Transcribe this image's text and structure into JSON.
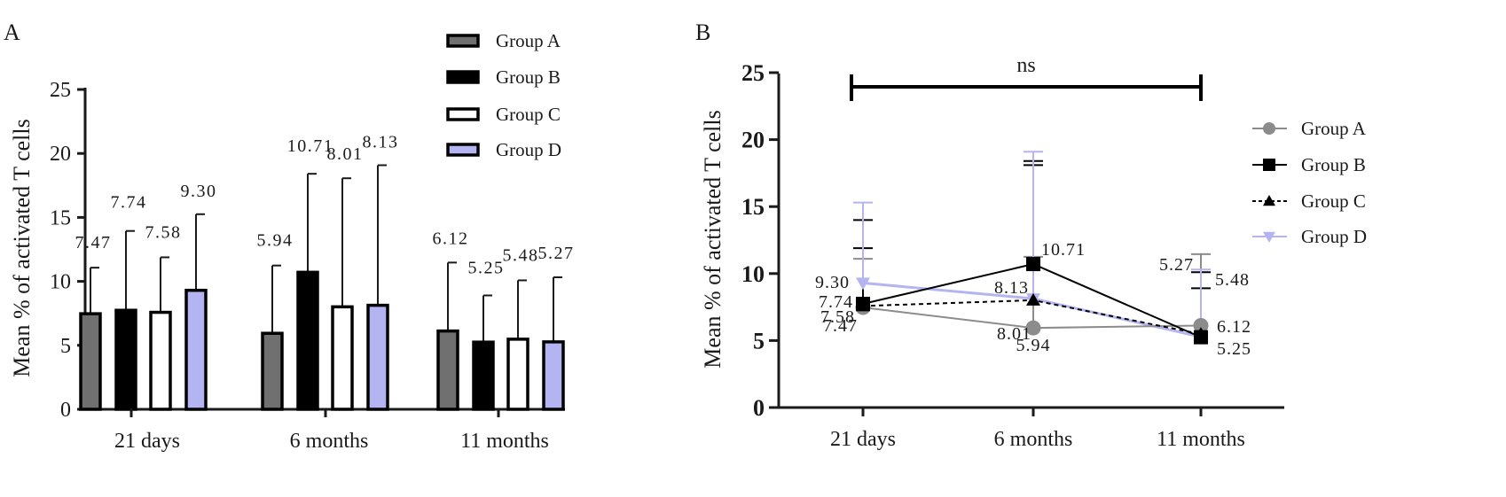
{
  "chart_data": [
    {
      "panel": "A",
      "type": "bar",
      "title": "",
      "xlabel": "",
      "ylabel": "Mean % of activated T cells",
      "ylim": [
        0,
        25
      ],
      "yticks": [
        "0",
        "5",
        "10",
        "15",
        "20",
        "25"
      ],
      "categories": [
        "21 days",
        "6 months",
        "11 months"
      ],
      "legend_position": "top-right",
      "series": [
        {
          "name": "Group A",
          "color": "#707070",
          "values": [
            7.47,
            5.94,
            6.12
          ],
          "errors": [
            3.6,
            5.3,
            5.35
          ],
          "labels": [
            "7.47",
            "5.94",
            "6.12"
          ]
        },
        {
          "name": "Group B",
          "color": "#000000",
          "values": [
            7.74,
            10.71,
            5.25
          ],
          "errors": [
            6.2,
            7.7,
            3.65
          ],
          "labels": [
            "7.74",
            "10.71",
            "5.25"
          ]
        },
        {
          "name": "Group C",
          "color": "#ffffff",
          "values": [
            7.58,
            8.01,
            5.48
          ],
          "errors": [
            4.3,
            10.05,
            4.6
          ],
          "labels": [
            "7.58",
            "8.01",
            "5.48"
          ]
        },
        {
          "name": "Group D",
          "color": "#b4b4f2",
          "values": [
            9.3,
            8.13,
            5.27
          ],
          "errors": [
            5.95,
            10.95,
            5.05
          ],
          "labels": [
            "9.30",
            "8.13",
            "5.27"
          ]
        }
      ]
    },
    {
      "panel": "B",
      "type": "line",
      "title": "",
      "xlabel": "",
      "ylabel": "Mean % of activated T cells",
      "ylim": [
        0,
        25
      ],
      "yticks": [
        "0",
        "5",
        "10",
        "15",
        "20",
        "25"
      ],
      "categories": [
        "21 days",
        "6 months",
        "11 months"
      ],
      "annotation": "ns",
      "legend_position": "right",
      "series": [
        {
          "name": "Group A",
          "color": "#8c8c8c",
          "marker": "circle",
          "dash": "solid",
          "values": [
            7.47,
            5.94,
            6.12
          ],
          "upper_err": [
            11.1,
            11.25,
            11.45
          ],
          "labels": [
            "7.47",
            "5.94",
            "6.12"
          ]
        },
        {
          "name": "Group B",
          "color": "#000000",
          "marker": "square",
          "dash": "solid",
          "values": [
            7.74,
            10.71,
            5.25
          ],
          "upper_err": [
            14.0,
            18.4,
            8.9
          ],
          "labels": [
            "7.74",
            "10.71",
            "5.25"
          ]
        },
        {
          "name": "Group C",
          "color": "#000000",
          "marker": "triangle-up",
          "dash": "dotted",
          "values": [
            7.58,
            8.01,
            5.48
          ],
          "upper_err": [
            11.9,
            18.1,
            10.1
          ],
          "labels": [
            "7.58",
            "8.01",
            "5.48"
          ]
        },
        {
          "name": "Group D",
          "color": "#b4b4f2",
          "marker": "triangle-down",
          "dash": "solid",
          "values": [
            9.3,
            8.13,
            5.27
          ],
          "upper_err": [
            15.3,
            19.1,
            10.3
          ],
          "labels": [
            "9.30",
            "8.13",
            "5.27"
          ]
        }
      ]
    }
  ]
}
